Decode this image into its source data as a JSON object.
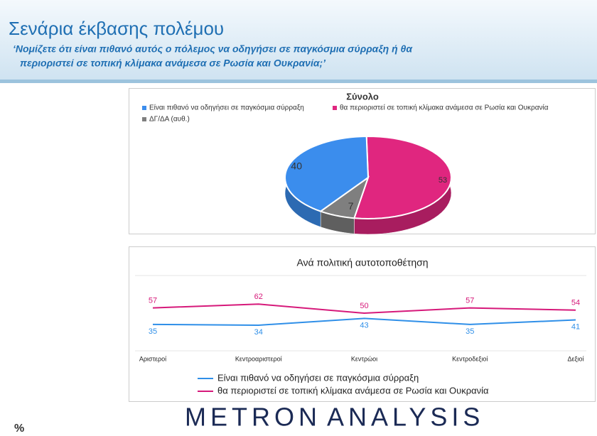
{
  "header": {
    "title": "Σενάρια έκβασης πολέμου",
    "subtitle": [
      "‘Νομίζετε ότι είναι πιθανό αυτός ο πόλεμος να οδηγήσει σε παγκόσμια σύρραξη ή θα",
      "περιοριστεί σε τοπική κλίμακα ανάμεσα σε Ρωσία και Ουκρανία;’"
    ]
  },
  "chart_data": [
    {
      "type": "pie",
      "title": "Σύνολο",
      "categories": [
        "Είναι πιθανό να οδηγήσει σε παγκόσμια σύρραξη",
        "θα περιοριστεί σε τοπική κλίμακα ανάμεσα σε Ρωσία και Ουκρανία",
        "ΔΓ/ΔΑ (αυθ.)"
      ],
      "values": [
        40,
        53,
        7
      ],
      "colors": [
        "#3b8ded",
        "#e0267f",
        "#7f7f7f"
      ]
    },
    {
      "type": "line",
      "title": "Ανά πολιτική αυτοτοποθέτηση",
      "categories": [
        "Αριστεροί",
        "Κεντροαριστεροί",
        "Κεντρώοι",
        "Κεντροδεξιοί",
        "Δεξιοί"
      ],
      "series": [
        {
          "name": "Είναι πιθανό να οδηγήσει σε παγκόσμια σύρραξη",
          "color": "#2f8fe8",
          "values": [
            35,
            34,
            43,
            35,
            41
          ]
        },
        {
          "name": "θα περιοριστεί σε τοπική κλίμακα ανάμεσα σε Ρωσία και Ουκρανία",
          "color": "#d6197a",
          "values": [
            57,
            62,
            50,
            57,
            54
          ]
        }
      ],
      "ylim": [
        0,
        100
      ],
      "grid": true
    }
  ],
  "footer": {
    "unit": "%",
    "logo": [
      "METRON",
      "ANALYSIS"
    ]
  }
}
